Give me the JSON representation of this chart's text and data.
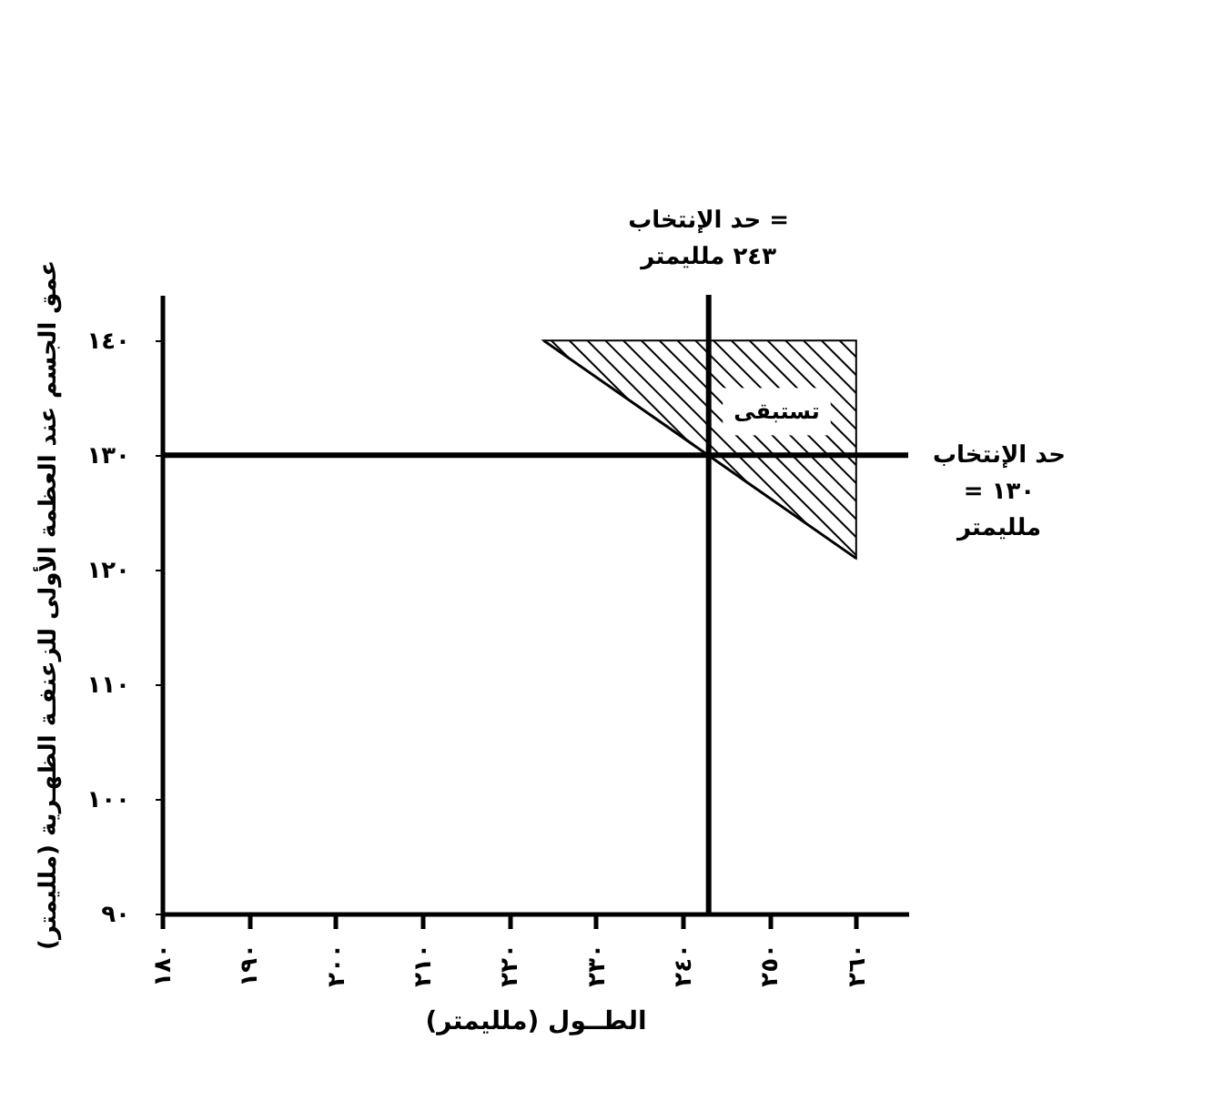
{
  "chart_data": {
    "type": "line",
    "xlabel": "الطــول (ملليمتر)",
    "ylabel": "عمق الجسم عند العظمة الأولى للزعنفـة الظهـرية (ملليمتر)",
    "xlim": [
      180,
      266
    ],
    "ylim": [
      90,
      144
    ],
    "xticks": [
      {
        "value": 180,
        "label": "١٨٠"
      },
      {
        "value": 190,
        "label": "١٩٠"
      },
      {
        "value": 200,
        "label": "٢٠٠"
      },
      {
        "value": 210,
        "label": "٢١٠"
      },
      {
        "value": 220,
        "label": "٢٢٠"
      },
      {
        "value": 230,
        "label": "٢٣٠"
      },
      {
        "value": 240,
        "label": "٢٤٠"
      },
      {
        "value": 250,
        "label": "٢٥٠"
      },
      {
        "value": 260,
        "label": "٢٦٠"
      }
    ],
    "yticks": [
      {
        "value": 90,
        "label": "٩٠"
      },
      {
        "value": 100,
        "label": "١٠٠"
      },
      {
        "value": 110,
        "label": "١١٠"
      },
      {
        "value": 120,
        "label": "١٢٠"
      },
      {
        "value": 130,
        "label": "١٣٠"
      },
      {
        "value": 140,
        "label": "١٤٠"
      }
    ],
    "series": [
      {
        "color": "#000000",
        "x": [
          224,
          260
        ],
        "values": [
          140,
          121
        ],
        "lower": [
          140,
          121
        ],
        "upper": [
          140,
          140
        ]
      }
    ],
    "ref_lines": [
      {
        "axis": "x",
        "value": 243,
        "label": "حد الإنتخاب =\n٢٤٣ ملليمتر",
        "color": "#000000"
      },
      {
        "axis": "y",
        "value": 130,
        "label": "حد الإنتخاب\n= ١٣٠\nملليمتر",
        "color": "#000000"
      }
    ],
    "annotations": [
      "تستبقى"
    ],
    "grid": false
  }
}
